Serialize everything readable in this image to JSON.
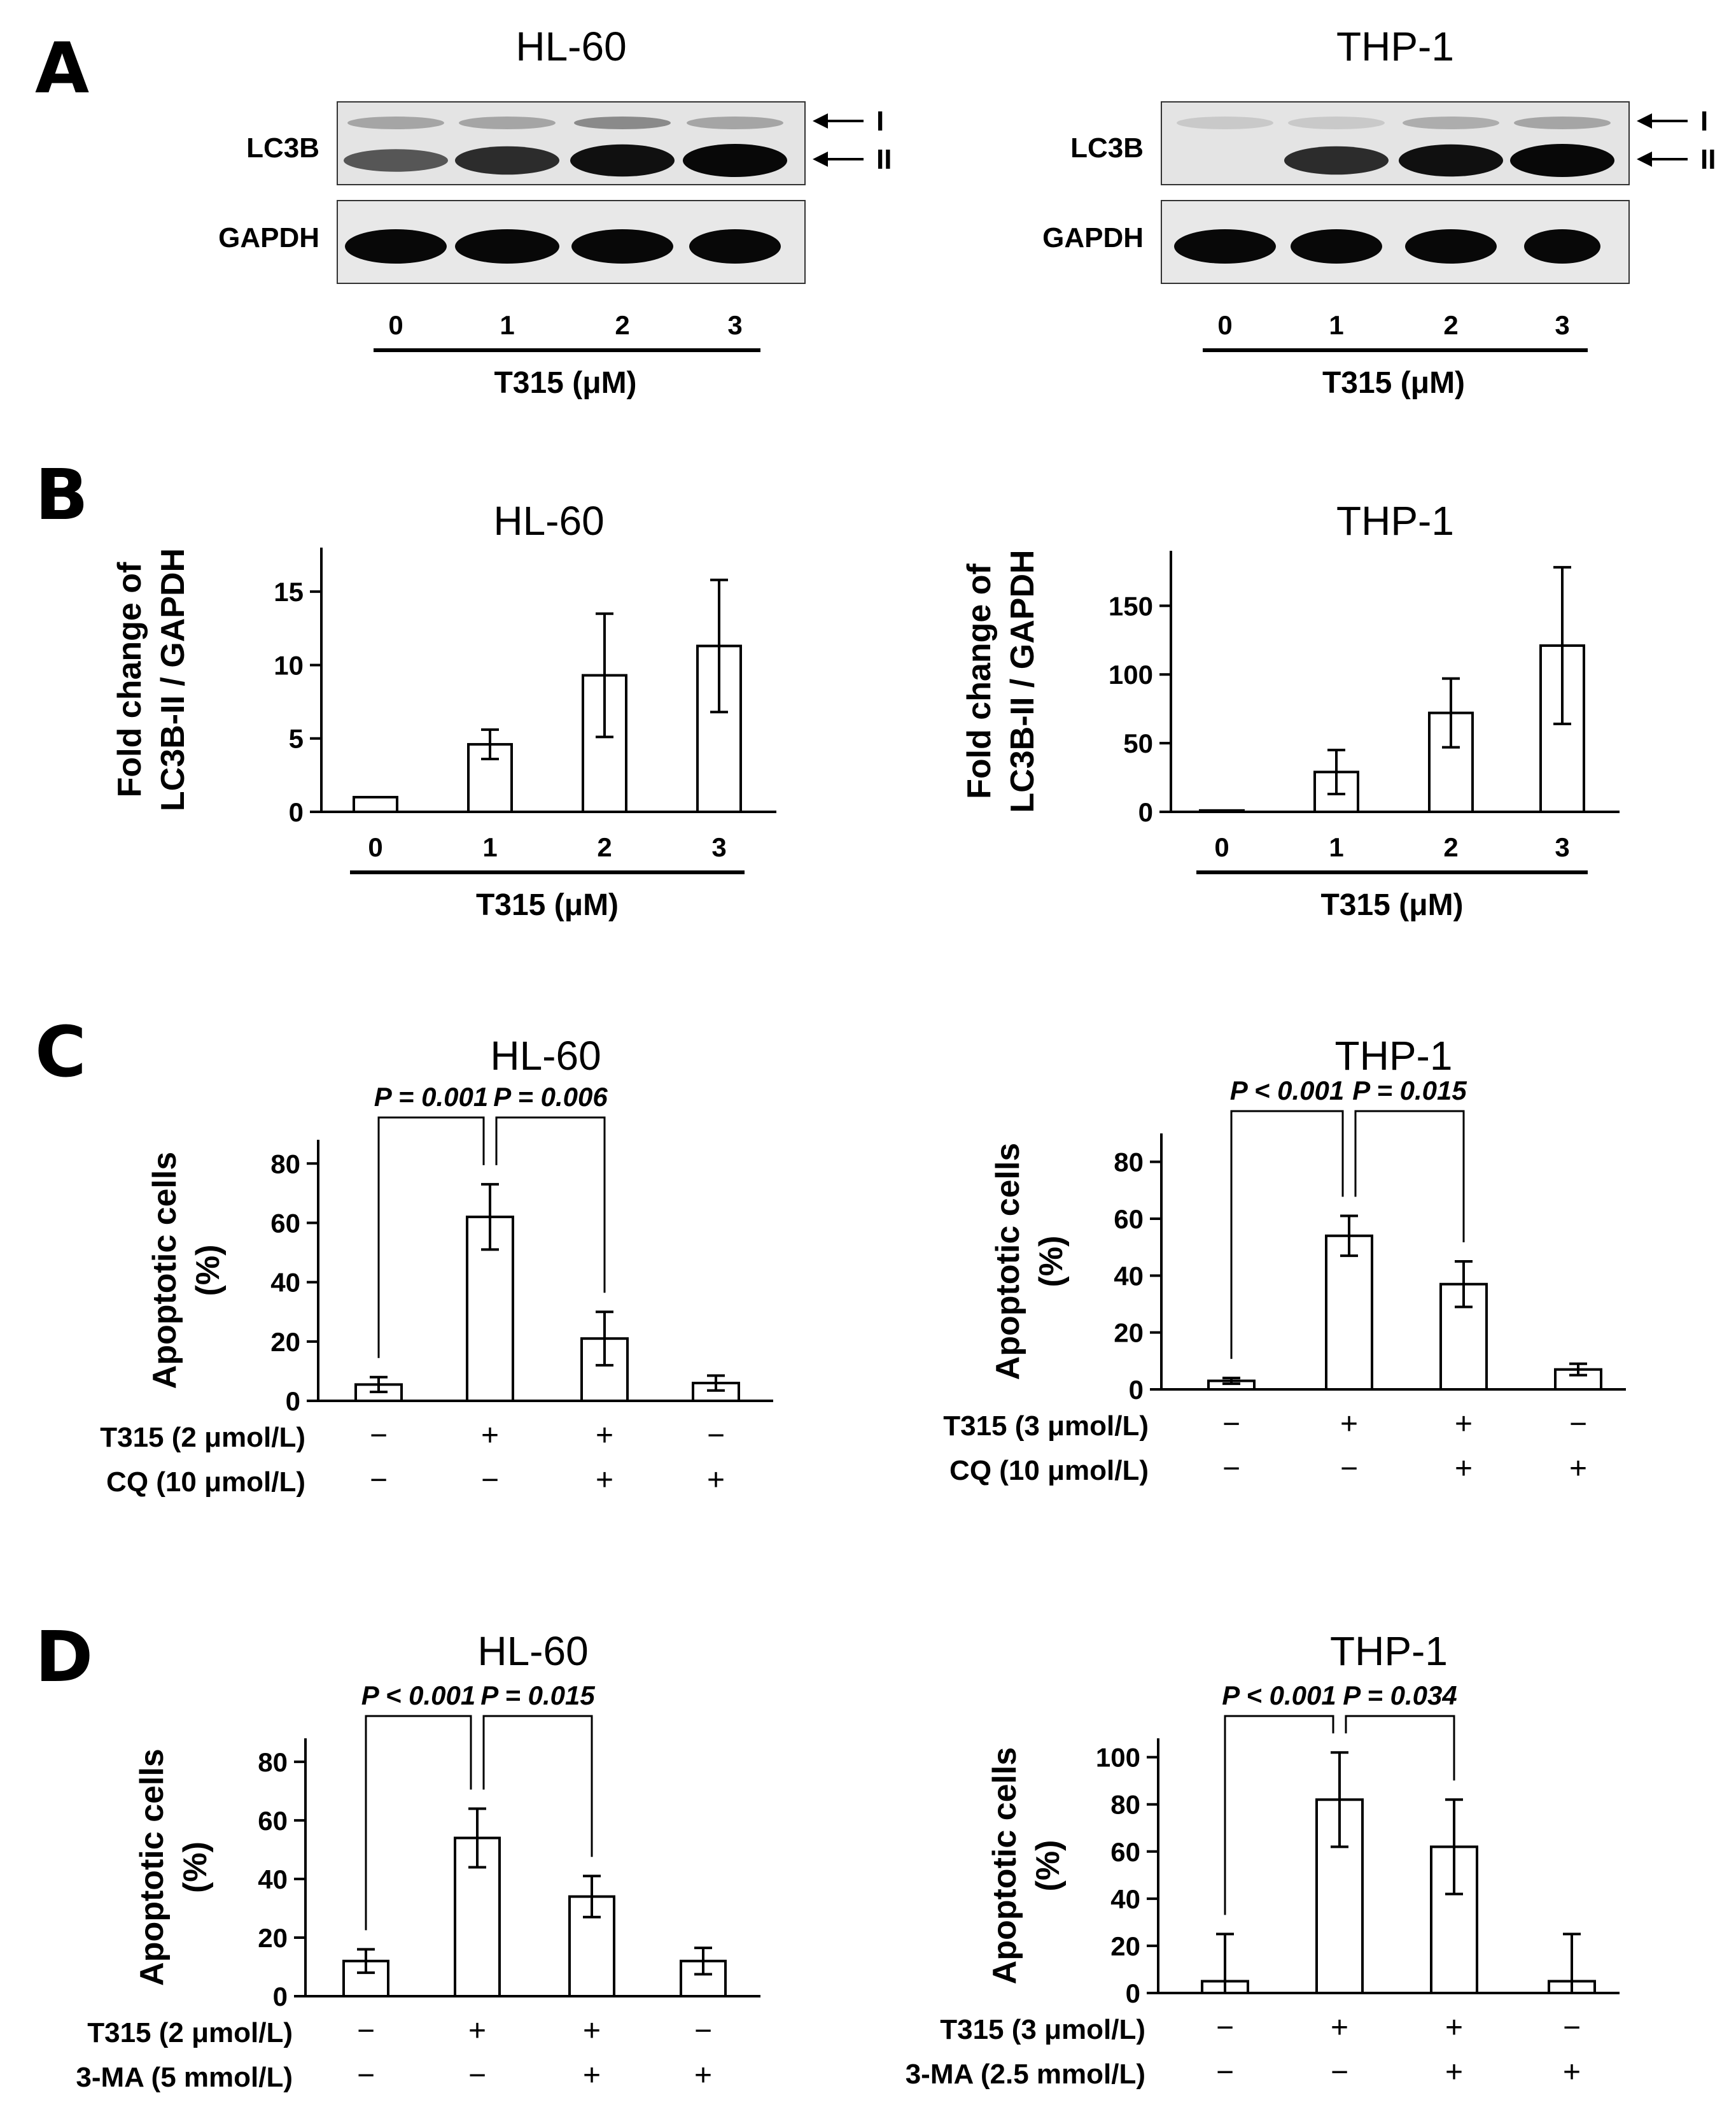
{
  "panels": {
    "A": {
      "letter": "A",
      "blots": [
        {
          "title": "HL-60",
          "bands": [
            "LC3B",
            "GAPDH"
          ],
          "arrows": [
            "I",
            "II"
          ],
          "lanes": [
            "0",
            "1",
            "2",
            "3"
          ],
          "xlabel": "T315 (μM)"
        },
        {
          "title": "THP-1",
          "bands": [
            "LC3B",
            "GAPDH"
          ],
          "arrows": [
            "I",
            "II"
          ],
          "lanes": [
            "0",
            "1",
            "2",
            "3"
          ],
          "xlabel": "T315 (μM)"
        }
      ]
    },
    "B": {
      "letter": "B"
    },
    "C": {
      "letter": "C"
    },
    "D": {
      "letter": "D"
    }
  },
  "chart_data": [
    {
      "panel": "B",
      "type": "bar",
      "title": "HL-60",
      "ylabel": [
        "Fold change of",
        "LC3B-II / GAPDH"
      ],
      "xlabel": "T315 (μM)",
      "categories": [
        "0",
        "1",
        "2",
        "3"
      ],
      "values": [
        1.0,
        4.6,
        9.3,
        11.3
      ],
      "errors": [
        0,
        1.0,
        4.2,
        4.5
      ],
      "ylim": [
        0,
        18
      ],
      "yticks": [
        0,
        5,
        10,
        15
      ],
      "pvalues": []
    },
    {
      "panel": "B",
      "type": "bar",
      "title": "THP-1",
      "ylabel": [
        "Fold change of",
        "LC3B-II / GAPDH"
      ],
      "xlabel": "T315 (μM)",
      "categories": [
        "0",
        "1",
        "2",
        "3"
      ],
      "values": [
        1,
        29,
        72,
        121
      ],
      "errors": [
        0,
        16,
        25,
        57
      ],
      "ylim": [
        0,
        190
      ],
      "yticks": [
        0,
        50,
        100,
        150
      ],
      "pvalues": []
    },
    {
      "panel": "C",
      "type": "bar",
      "title": "HL-60",
      "ylabel": [
        "Apoptotic cells",
        "(%)"
      ],
      "treatments": [
        {
          "label": "T315 (2 μmol/L)",
          "signs": [
            "−",
            "+",
            "+",
            "−"
          ]
        },
        {
          "label": "CQ (10 μmol/L)",
          "signs": [
            "−",
            "−",
            "+",
            "+"
          ]
        }
      ],
      "values": [
        5.5,
        62,
        21,
        6
      ],
      "errors": [
        2.5,
        11,
        9,
        2.5
      ],
      "ylim": [
        0,
        88
      ],
      "yticks": [
        0,
        20,
        40,
        60,
        80
      ],
      "pvalues": [
        {
          "text": "P = 0.001",
          "from": 0,
          "to": 1
        },
        {
          "text": "P = 0.006",
          "from": 1,
          "to": 2
        }
      ]
    },
    {
      "panel": "C",
      "type": "bar",
      "title": "THP-1",
      "ylabel": [
        "Apoptotic cells",
        "(%)"
      ],
      "treatments": [
        {
          "label": "T315 (3 μmol/L)",
          "signs": [
            "−",
            "+",
            "+",
            "−"
          ]
        },
        {
          "label": "CQ (10 μmol/L)",
          "signs": [
            "−",
            "−",
            "+",
            "+"
          ]
        }
      ],
      "values": [
        3,
        54,
        37,
        7
      ],
      "errors": [
        1,
        7,
        8,
        2
      ],
      "ylim": [
        0,
        90
      ],
      "yticks": [
        0,
        20,
        40,
        60,
        80
      ],
      "pvalues": [
        {
          "text": "P < 0.001",
          "from": 0,
          "to": 1
        },
        {
          "text": "P = 0.015",
          "from": 1,
          "to": 2
        }
      ]
    },
    {
      "panel": "D",
      "type": "bar",
      "title": "HL-60",
      "ylabel": [
        "Apoptotic cells",
        "(%)"
      ],
      "treatments": [
        {
          "label": "T315 (2 μmol/L)",
          "signs": [
            "−",
            "+",
            "+",
            "−"
          ]
        },
        {
          "label": "3-MA (5 mmol/L)",
          "signs": [
            "−",
            "−",
            "+",
            "+"
          ]
        }
      ],
      "values": [
        12,
        54,
        34,
        12
      ],
      "errors": [
        4,
        10,
        7,
        4.5
      ],
      "ylim": [
        0,
        88
      ],
      "yticks": [
        0,
        20,
        40,
        60,
        80
      ],
      "pvalues": [
        {
          "text": "P < 0.001",
          "from": 0,
          "to": 1
        },
        {
          "text": "P = 0.015",
          "from": 1,
          "to": 2
        }
      ]
    },
    {
      "panel": "D",
      "type": "bar",
      "title": "THP-1",
      "ylabel": [
        "Apoptotic cells",
        "(%)"
      ],
      "treatments": [
        {
          "label": "T315 (3 μmol/L)",
          "signs": [
            "−",
            "+",
            "+",
            "−"
          ]
        },
        {
          "label": "3-MA (2.5 mmol/L)",
          "signs": [
            "−",
            "−",
            "+",
            "+"
          ]
        }
      ],
      "values": [
        5,
        82,
        62,
        5
      ],
      "errors": [
        20,
        20,
        20,
        20
      ],
      "ylim": [
        0,
        108
      ],
      "yticks": [
        0,
        20,
        40,
        60,
        80,
        100
      ],
      "pvalues": [
        {
          "text": "P < 0.001",
          "from": 0,
          "to": 1
        },
        {
          "text": "P = 0.034",
          "from": 1,
          "to": 2
        }
      ]
    }
  ]
}
